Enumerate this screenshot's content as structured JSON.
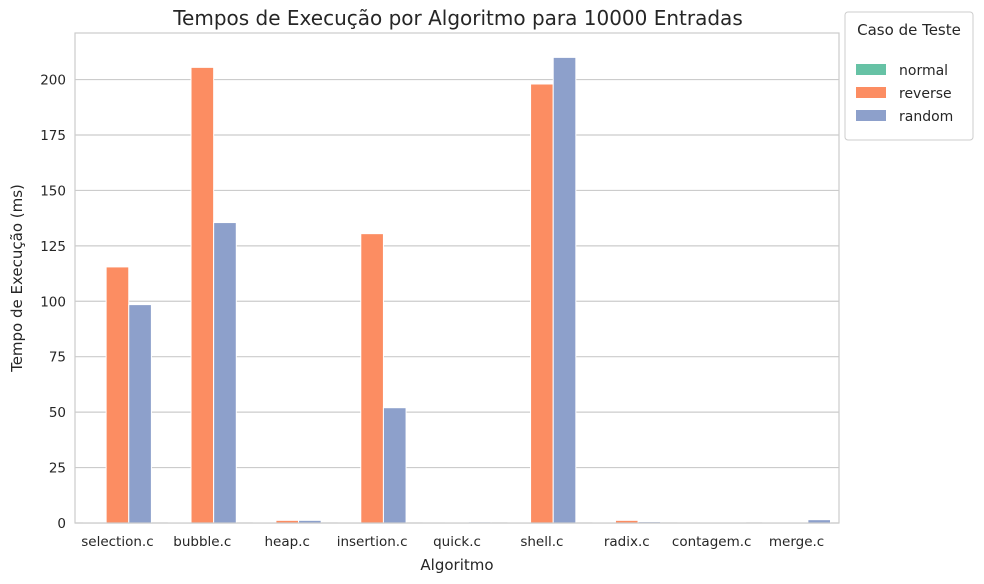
{
  "chart_data": {
    "type": "bar",
    "title": "Tempos de Execução por Algoritmo para 10000 Entradas",
    "xlabel": "Algoritmo",
    "ylabel": "Tempo de Execução (ms)",
    "ylim": [
      0,
      221
    ],
    "yticks": [
      0,
      25,
      50,
      75,
      100,
      125,
      150,
      175,
      200
    ],
    "grid": true,
    "legend_title": "Caso de Teste",
    "legend_position": "outside-top-right",
    "categories": [
      "selection.c",
      "bubble.c",
      "heap.c",
      "insertion.c",
      "quick.c",
      "shell.c",
      "radix.c",
      "contagem.c",
      "merge.c"
    ],
    "series": [
      {
        "name": "normal",
        "color": "#66c2a5",
        "values": [
          0.1,
          0.2,
          0.2,
          0.1,
          0.1,
          0.2,
          0.2,
          0.1,
          0.2
        ]
      },
      {
        "name": "reverse",
        "color": "#fc8d62",
        "values": [
          115.5,
          205.5,
          1.2,
          130.5,
          0.4,
          198.0,
          1.2,
          0.3,
          0.4
        ]
      },
      {
        "name": "random",
        "color": "#8da0cb",
        "values": [
          98.5,
          135.5,
          1.2,
          52.0,
          0.5,
          210.0,
          0.6,
          0.3,
          1.5
        ]
      }
    ]
  }
}
